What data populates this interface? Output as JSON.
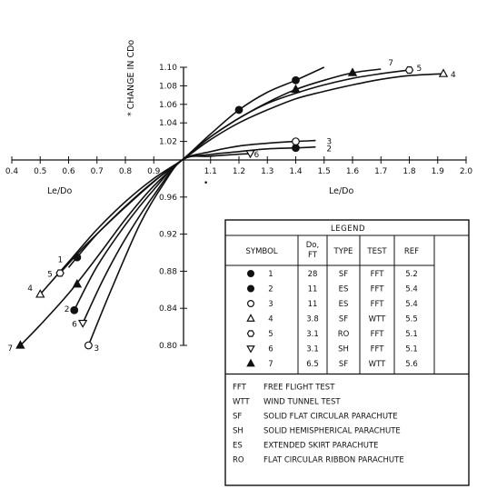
{
  "chart_data": {
    "type": "line",
    "title": "",
    "xlabel": "Le/Do",
    "ylabel": "* CHANGE IN CDo",
    "xlim": [
      0.4,
      2.0
    ],
    "ylim": [
      0.8,
      1.1
    ],
    "origin": [
      1.0,
      1.0
    ],
    "x_ticks": [
      0.4,
      0.5,
      0.6,
      0.7,
      0.8,
      0.9,
      1.1,
      1.2,
      1.3,
      1.4,
      1.5,
      1.6,
      1.7,
      1.8,
      1.9,
      2.0
    ],
    "x_tick_labels": [
      "0.4",
      "0.5",
      "0.6",
      "0.7",
      "0.8",
      "0.9",
      "1.1",
      "1.2",
      "1.3",
      "1.4",
      "1.5",
      "1.6",
      "1.7",
      "1.8",
      "1.9",
      "2.0"
    ],
    "y_ticks": [
      0.8,
      0.84,
      0.88,
      0.92,
      0.96,
      1.02,
      1.04,
      1.06,
      1.08,
      1.1
    ],
    "y_tick_labels": [
      "0.80",
      "0.84",
      "0.88",
      "0.92",
      "0.96",
      "1.02",
      "1.04",
      "1.06",
      "1.08",
      "1.10"
    ],
    "x_label_left": "Le/Do",
    "x_label_right": "Le/Do",
    "footnote_mark": "•",
    "grid": false,
    "legend_position": "bottom-right",
    "series": [
      {
        "name": "1",
        "marker": "circle-filled",
        "points": [
          [
            0.63,
            0.895
          ],
          [
            1.2,
            1.054
          ],
          [
            1.4,
            1.086
          ]
        ],
        "curve": [
          [
            0.6,
            0.884
          ],
          [
            0.7,
            0.92
          ],
          [
            0.8,
            0.95
          ],
          [
            0.9,
            0.977
          ],
          [
            1.0,
            1.0
          ],
          [
            1.1,
            1.028
          ],
          [
            1.2,
            1.054
          ],
          [
            1.3,
            1.073
          ],
          [
            1.4,
            1.086
          ],
          [
            1.5,
            1.1
          ]
        ]
      },
      {
        "name": "2",
        "marker": "circle-filled",
        "points": [
          [
            0.62,
            0.838
          ],
          [
            1.4,
            1.013
          ]
        ],
        "curve": [
          [
            0.62,
            0.838
          ],
          [
            0.7,
            0.885
          ],
          [
            0.8,
            0.93
          ],
          [
            0.9,
            0.968
          ],
          [
            1.0,
            1.0
          ],
          [
            1.1,
            1.006
          ],
          [
            1.2,
            1.009
          ],
          [
            1.3,
            1.012
          ],
          [
            1.4,
            1.013
          ],
          [
            1.47,
            1.014
          ]
        ]
      },
      {
        "name": "3",
        "marker": "circle-open",
        "points": [
          [
            0.67,
            0.8
          ],
          [
            1.4,
            1.02
          ]
        ],
        "curve": [
          [
            0.67,
            0.8
          ],
          [
            0.75,
            0.86
          ],
          [
            0.85,
            0.93
          ],
          [
            0.93,
            0.972
          ],
          [
            1.0,
            1.0
          ],
          [
            1.1,
            1.009
          ],
          [
            1.2,
            1.015
          ],
          [
            1.3,
            1.018
          ],
          [
            1.4,
            1.02
          ],
          [
            1.47,
            1.021
          ]
        ]
      },
      {
        "name": "4",
        "marker": "triangle-open",
        "points": [
          [
            0.5,
            0.855
          ],
          [
            1.92,
            1.093
          ]
        ],
        "curve": [
          [
            0.5,
            0.855
          ],
          [
            0.6,
            0.89
          ],
          [
            0.7,
            0.925
          ],
          [
            0.8,
            0.955
          ],
          [
            0.9,
            0.98
          ],
          [
            1.0,
            1.0
          ],
          [
            1.1,
            1.022
          ],
          [
            1.2,
            1.04
          ],
          [
            1.3,
            1.054
          ],
          [
            1.4,
            1.066
          ],
          [
            1.5,
            1.074
          ],
          [
            1.6,
            1.081
          ],
          [
            1.7,
            1.087
          ],
          [
            1.8,
            1.091
          ],
          [
            1.92,
            1.093
          ]
        ]
      },
      {
        "name": "5",
        "marker": "hexagon-open",
        "points": [
          [
            0.57,
            0.878
          ],
          [
            1.8,
            1.097
          ]
        ],
        "curve": [
          [
            0.57,
            0.878
          ],
          [
            0.65,
            0.905
          ],
          [
            0.75,
            0.935
          ],
          [
            0.85,
            0.963
          ],
          [
            0.93,
            0.984
          ],
          [
            1.0,
            1.0
          ],
          [
            1.1,
            1.025
          ],
          [
            1.2,
            1.045
          ],
          [
            1.3,
            1.061
          ],
          [
            1.4,
            1.072
          ],
          [
            1.5,
            1.081
          ],
          [
            1.6,
            1.088
          ],
          [
            1.7,
            1.093
          ],
          [
            1.8,
            1.097
          ]
        ]
      },
      {
        "name": "6",
        "marker": "triangle-down-open",
        "points": [
          [
            0.65,
            0.824
          ],
          [
            1.24,
            1.007
          ]
        ],
        "curve": [
          [
            0.65,
            0.824
          ],
          [
            0.72,
            0.87
          ],
          [
            0.8,
            0.915
          ],
          [
            0.9,
            0.962
          ],
          [
            1.0,
            1.0
          ],
          [
            1.1,
            1.004
          ],
          [
            1.24,
            1.007
          ]
        ]
      },
      {
        "name": "7",
        "marker": "triangle-filled",
        "points": [
          [
            0.43,
            0.8
          ],
          [
            0.63,
            0.866
          ],
          [
            1.4,
            1.076
          ],
          [
            1.6,
            1.094
          ]
        ],
        "curve": [
          [
            0.43,
            0.8
          ],
          [
            0.5,
            0.822
          ],
          [
            0.6,
            0.856
          ],
          [
            0.7,
            0.895
          ],
          [
            0.8,
            0.936
          ],
          [
            0.9,
            0.972
          ],
          [
            1.0,
            1.0
          ],
          [
            1.1,
            1.025
          ],
          [
            1.2,
            1.045
          ],
          [
            1.3,
            1.062
          ],
          [
            1.4,
            1.076
          ],
          [
            1.5,
            1.086
          ],
          [
            1.6,
            1.094
          ],
          [
            1.7,
            1.098
          ]
        ]
      }
    ]
  },
  "legend": {
    "title": "LEGEND",
    "headers": [
      "SYMBOL",
      "Do,\nFT",
      "TYPE",
      "TEST",
      "REF"
    ],
    "rows": [
      {
        "num": "1",
        "marker": "circle-filled",
        "do": "28",
        "type": "SF",
        "test": "FFT",
        "ref": "5.2"
      },
      {
        "num": "2",
        "marker": "circle-filled",
        "do": "11",
        "type": "ES",
        "test": "FFT",
        "ref": "5.4"
      },
      {
        "num": "3",
        "marker": "circle-open",
        "do": "11",
        "type": "ES",
        "test": "FFT",
        "ref": "5.4"
      },
      {
        "num": "4",
        "marker": "triangle-open",
        "do": "3.8",
        "type": "SF",
        "test": "WTT",
        "ref": "5.5"
      },
      {
        "num": "5",
        "marker": "hexagon-open",
        "do": "3.1",
        "type": "RO",
        "test": "FFT",
        "ref": "5.1"
      },
      {
        "num": "6",
        "marker": "triangle-down-open",
        "do": "3.1",
        "type": "SH",
        "test": "FFT",
        "ref": "5.1"
      },
      {
        "num": "7",
        "marker": "triangle-filled",
        "do": "6.5",
        "type": "SF",
        "test": "WTT",
        "ref": "5.6"
      }
    ],
    "abbreviations": [
      {
        "abbr": "FFT",
        "text": "FREE FLIGHT TEST"
      },
      {
        "abbr": "WTT",
        "text": "WIND TUNNEL TEST"
      },
      {
        "abbr": "SF",
        "text": "SOLID FLAT CIRCULAR PARACHUTE"
      },
      {
        "abbr": "SH",
        "text": "SOLID HEMISPHERICAL PARACHUTE"
      },
      {
        "abbr": "ES",
        "text": "EXTENDED SKIRT PARACHUTE"
      },
      {
        "abbr": "RO",
        "text": "FLAT CIRCULAR RIBBON PARACHUTE"
      }
    ]
  }
}
